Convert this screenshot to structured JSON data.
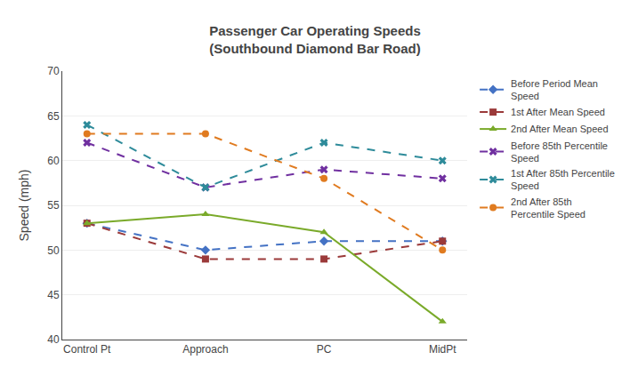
{
  "chart_data": {
    "type": "line",
    "title": "Passenger Car Operating Speeds\n(Southbound Diamond Bar Road)",
    "ylabel": "Speed (mph)",
    "categories": [
      "Control Pt",
      "Approach",
      "PC",
      "MidPt"
    ],
    "ylim": [
      40,
      70
    ],
    "yticks": [
      40,
      45,
      50,
      55,
      60,
      65,
      70
    ],
    "grid": true,
    "legend": "right",
    "series": [
      {
        "name": "Before Period Mean\nSpeed",
        "color": "#4472c4",
        "line_style": "dashed",
        "marker": "diamond",
        "values": [
          53,
          50,
          51,
          51
        ]
      },
      {
        "name": "1st After Mean Speed",
        "color": "#9b3a3a",
        "line_style": "dashed",
        "marker": "square",
        "values": [
          53,
          49,
          49,
          51
        ]
      },
      {
        "name": "2nd After Mean Speed",
        "color": "#7aaa2a",
        "line_style": "solid",
        "marker": "triangle-up",
        "values": [
          53,
          54,
          52,
          42
        ]
      },
      {
        "name": "Before 85th Percentile\nSpeed",
        "color": "#7030a0",
        "line_style": "dashed",
        "marker": "x",
        "values": [
          62,
          57,
          59,
          58
        ]
      },
      {
        "name": "1st After 85th Percentile\nSpeed",
        "color": "#2e8b9a",
        "line_style": "dashed",
        "marker": "x",
        "values": [
          64,
          57,
          62,
          60
        ]
      },
      {
        "name": "2nd After 85th\nPercentile Speed",
        "color": "#e07b20",
        "line_style": "dashed",
        "marker": "circle",
        "values": [
          63,
          63,
          58,
          50
        ]
      }
    ]
  }
}
